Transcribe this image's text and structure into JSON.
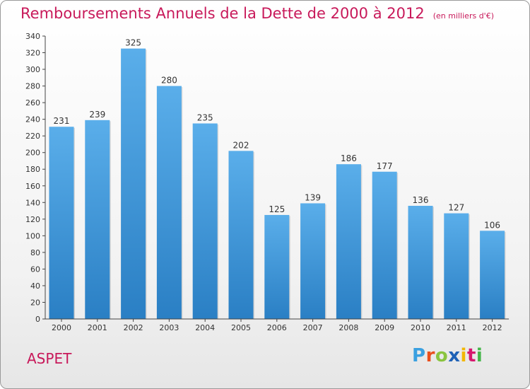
{
  "title": "Remboursements Annuels de la Dette de 2000 à 2012",
  "unit_note": "(en milliers d'€)",
  "commune": "ASPET",
  "logo": {
    "p": "P",
    "r": "r",
    "o": "o",
    "x": "x",
    "i1": "i",
    "t": "t",
    "i2": "i"
  },
  "colors": {
    "title": "#c8195a",
    "bar_top": "#5aaeea",
    "bar_bottom": "#2a7fc4",
    "axis": "#444444"
  },
  "chart_data": {
    "type": "bar",
    "categories": [
      "2000",
      "2001",
      "2002",
      "2003",
      "2004",
      "2005",
      "2006",
      "2007",
      "2008",
      "2009",
      "2010",
      "2011",
      "2012"
    ],
    "values": [
      231,
      239,
      325,
      280,
      235,
      202,
      125,
      139,
      186,
      177,
      136,
      127,
      106
    ],
    "data_labels": [
      "231",
      "239",
      "325",
      "280",
      "235",
      "202",
      "125",
      "139",
      "186",
      "177",
      "136",
      "127",
      "106"
    ],
    "ylim": [
      0,
      340
    ],
    "yticks": [
      0,
      20,
      40,
      60,
      80,
      100,
      120,
      140,
      160,
      180,
      200,
      220,
      240,
      260,
      280,
      300,
      320,
      340
    ],
    "grid": false,
    "xlabel": "",
    "ylabel": ""
  }
}
